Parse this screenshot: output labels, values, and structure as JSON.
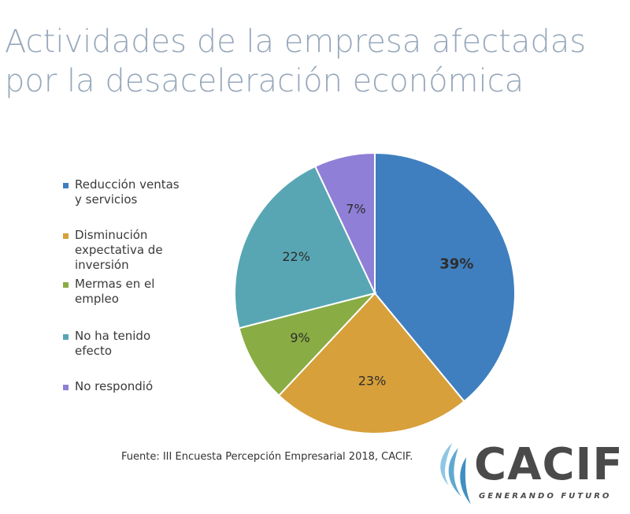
{
  "title_lines": [
    "Actividades de la empresa afectadas",
    "por la desaceleración económica"
  ],
  "chart_data": {
    "type": "pie",
    "title": "Actividades de la empresa afectadas por la desaceleración económica",
    "categories": [
      "Reducción ventas y servicios",
      "Disminución expectativa de inversión",
      "Mermas en el empleo",
      "No ha tenido efecto",
      "No respondió"
    ],
    "values": [
      39,
      23,
      9,
      22,
      7
    ],
    "data_labels": [
      "39%",
      "23%",
      "9%",
      "22%",
      "7%"
    ],
    "colors": [
      "#3f7fbf",
      "#d7a03b",
      "#8aac44",
      "#58a6b3",
      "#8f7fd6"
    ],
    "start_angle": "12 o'clock",
    "direction": "clockwise",
    "legend_position": "left"
  },
  "legend": [
    {
      "label": "Reducción ventas y servicios",
      "color": "#3f7fbf"
    },
    {
      "label": "Disminución expectativa de inversión",
      "color": "#d7a03b"
    },
    {
      "label": "Mermas en el empleo",
      "color": "#8aac44"
    },
    {
      "label": "No ha tenido efecto",
      "color": "#58a6b3"
    },
    {
      "label": "No respondió",
      "color": "#8f7fd6"
    }
  ],
  "source": "Fuente: III Encuesta Percepción Empresarial 2018, CACIF.",
  "logo": {
    "name": "CACIF",
    "tagline": "GENERANDO FUTURO",
    "flame_colors": [
      "#5fa9cf",
      "#3f8fc0"
    ]
  }
}
